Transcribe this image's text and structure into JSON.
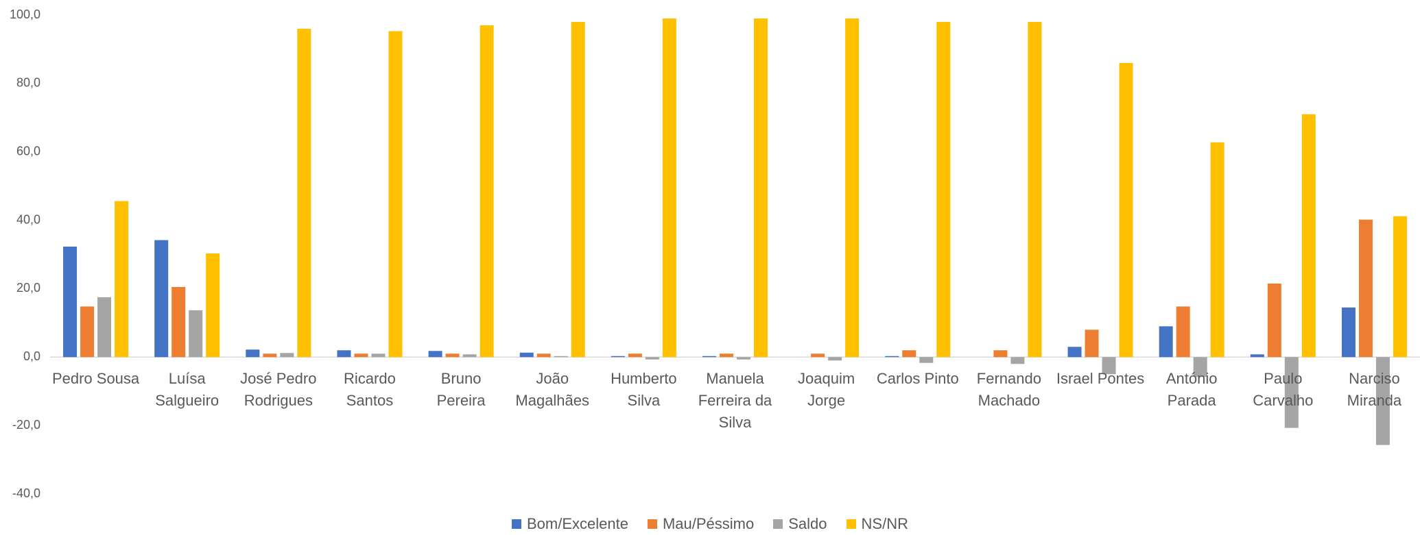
{
  "chart_data": {
    "type": "bar",
    "categories": [
      "Pedro Sousa",
      "Luísa Salgueiro",
      "José Pedro Rodrigues",
      "Ricardo Santos",
      "Bruno Pereira",
      "João Magalhães",
      "Humberto Silva",
      "Manuela Ferreira da Silva",
      "Joaquim Jorge",
      "Carlos Pinto",
      "Fernando Machado",
      "Israel Pontes",
      "António Parada",
      "Paulo Carvalho",
      "Narciso Miranda"
    ],
    "series": [
      {
        "name": "Bom/Excelente",
        "color": "#4472c4",
        "values": [
          32.3,
          34.2,
          2.2,
          2.0,
          1.8,
          1.3,
          0.3,
          0.3,
          0.0,
          0.3,
          0.0,
          3.0,
          9.0,
          0.8,
          14.5
        ]
      },
      {
        "name": "Mau/Péssimo",
        "color": "#ed7d31",
        "values": [
          14.8,
          20.5,
          1.0,
          1.0,
          1.0,
          1.0,
          1.0,
          1.0,
          1.0,
          2.0,
          2.0,
          8.0,
          14.8,
          21.5,
          40.2
        ]
      },
      {
        "name": "Saldo",
        "color": "#a5a5a5",
        "values": [
          17.5,
          13.7,
          1.2,
          1.0,
          0.8,
          0.3,
          -0.7,
          -0.7,
          -1.0,
          -1.7,
          -2.0,
          -5.0,
          -5.8,
          -20.7,
          -25.7
        ]
      },
      {
        "name": "NS/NR",
        "color": "#ffc000",
        "values": [
          45.6,
          30.3,
          96.0,
          95.3,
          97.0,
          98.0,
          99.0,
          99.0,
          99.0,
          98.0,
          98.0,
          86.0,
          62.8,
          71.0,
          41.2
        ]
      }
    ],
    "ylim": [
      -40,
      100
    ],
    "yticks": [
      {
        "value": -40,
        "label": "-40,0"
      },
      {
        "value": -20,
        "label": "-20,0"
      },
      {
        "value": 0,
        "label": "0,0"
      },
      {
        "value": 20,
        "label": "20,0"
      },
      {
        "value": 40,
        "label": "40,0"
      },
      {
        "value": 60,
        "label": "60,0"
      },
      {
        "value": 80,
        "label": "80,0"
      },
      {
        "value": 100,
        "label": "100,0"
      }
    ],
    "grid": false,
    "legend": "bottom"
  }
}
